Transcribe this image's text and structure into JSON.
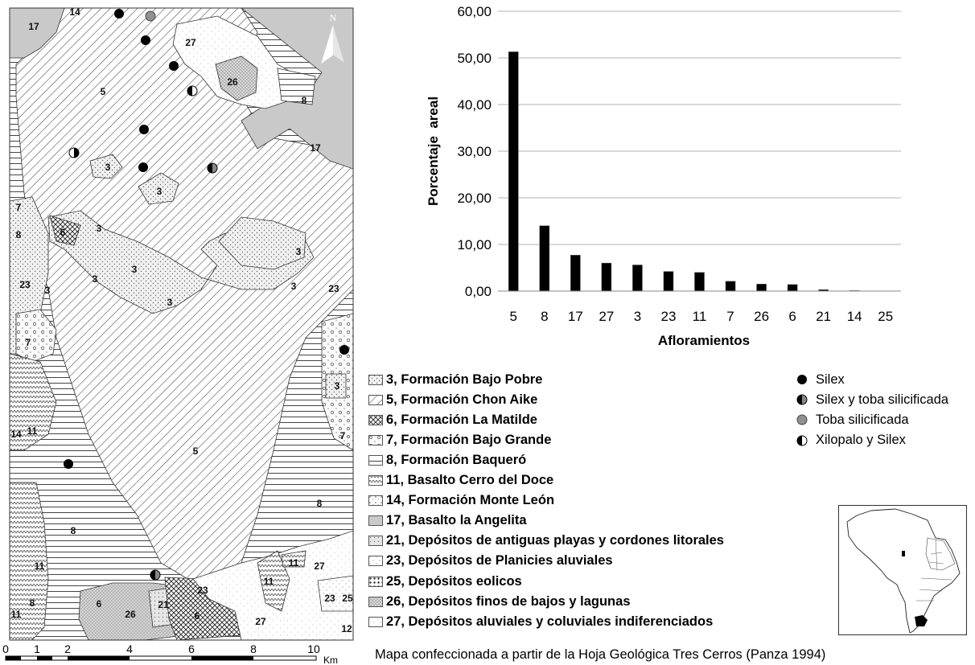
{
  "map": {
    "north_label": "N",
    "unit_labels": [
      {
        "id": "17",
        "text": "17"
      },
      {
        "id": "14",
        "text": "14"
      },
      {
        "id": "5a",
        "text": "5"
      },
      {
        "id": "27a",
        "text": "27"
      },
      {
        "id": "26a",
        "text": "26"
      },
      {
        "id": "8a",
        "text": "8"
      },
      {
        "id": "17b",
        "text": "17"
      },
      {
        "id": "3a",
        "text": "3"
      },
      {
        "id": "3b",
        "text": "3"
      },
      {
        "id": "7a",
        "text": "7"
      },
      {
        "id": "8b",
        "text": "8"
      },
      {
        "id": "6a",
        "text": "6"
      },
      {
        "id": "3c",
        "text": "3"
      },
      {
        "id": "3d",
        "text": "3"
      },
      {
        "id": "3e",
        "text": "3"
      },
      {
        "id": "23a",
        "text": "23"
      },
      {
        "id": "3f",
        "text": "3"
      },
      {
        "id": "3g",
        "text": "3"
      },
      {
        "id": "3h",
        "text": "3"
      },
      {
        "id": "3i",
        "text": "3"
      },
      {
        "id": "23b",
        "text": "23"
      },
      {
        "id": "7b",
        "text": "7"
      },
      {
        "id": "3j",
        "text": "3"
      },
      {
        "id": "14b",
        "text": "14"
      },
      {
        "id": "11a",
        "text": "11"
      },
      {
        "id": "7c",
        "text": "7"
      },
      {
        "id": "5b",
        "text": "5"
      },
      {
        "id": "8c",
        "text": "8"
      },
      {
        "id": "8d",
        "text": "8"
      },
      {
        "id": "11b",
        "text": "11"
      },
      {
        "id": "11c",
        "text": "11"
      },
      {
        "id": "27b",
        "text": "27"
      },
      {
        "id": "11d",
        "text": "11"
      },
      {
        "id": "23c",
        "text": "23"
      },
      {
        "id": "8e",
        "text": "8"
      },
      {
        "id": "6b",
        "text": "6"
      },
      {
        "id": "26b",
        "text": "26"
      },
      {
        "id": "21a",
        "text": "21"
      },
      {
        "id": "6c",
        "text": "6"
      },
      {
        "id": "23d",
        "text": "23"
      },
      {
        "id": "25a",
        "text": "25"
      },
      {
        "id": "27c",
        "text": "27"
      },
      {
        "id": "11e",
        "text": "11"
      },
      {
        "id": "12a",
        "text": "12"
      }
    ]
  },
  "scale": {
    "ticks": [
      "0",
      "1",
      "2",
      "4",
      "6",
      "8",
      "10"
    ],
    "unit": "Km"
  },
  "chart_data": {
    "type": "bar",
    "title": "",
    "xlabel": "Afloramientos",
    "ylabel": "Porcentaje  areal",
    "categories": [
      "5",
      "8",
      "17",
      "27",
      "3",
      "23",
      "11",
      "7",
      "26",
      "6",
      "21",
      "14",
      "25"
    ],
    "values": [
      51.3,
      14.0,
      7.7,
      6.0,
      5.6,
      4.2,
      4.0,
      2.1,
      1.5,
      1.4,
      0.3,
      0.1,
      0.0
    ],
    "ylim": [
      0,
      60
    ],
    "yticks": [
      "0,00",
      "10,00",
      "20,00",
      "30,00",
      "40,00",
      "50,00",
      "60,00"
    ],
    "ytick_values": [
      0,
      10,
      20,
      30,
      40,
      50,
      60
    ],
    "grid": true,
    "bar_color": "#000000"
  },
  "legend": {
    "units": [
      {
        "label": "3, Formación Bajo Pobre",
        "pattern": "p3"
      },
      {
        "label": "5, Formación Chon Aike",
        "pattern": "p5"
      },
      {
        "label": "6, Formación La Matilde",
        "pattern": "p6"
      },
      {
        "label": "7, Formación Bajo Grande",
        "pattern": "p7"
      },
      {
        "label": "8, Formación Baqueró",
        "pattern": "p8"
      },
      {
        "label": "11, Basalto Cerro del Doce",
        "pattern": "p11"
      },
      {
        "label": "14, Formación Monte León",
        "pattern": "p14"
      },
      {
        "label": "17, Basalto la Angelita",
        "pattern": "p17"
      },
      {
        "label": "21, Depósitos de antiguas playas y cordones litorales",
        "pattern": "p21"
      },
      {
        "label": "23, Depósitos de Planicies aluviales",
        "pattern": "p23"
      },
      {
        "label": "25, Depósitos eolicos",
        "pattern": "p25"
      },
      {
        "label": "26, Depósitos finos de bajos y lagunas",
        "pattern": "p26"
      },
      {
        "label": "27, Depósitos aluviales y coluviales indiferenciados",
        "pattern": "p27"
      }
    ],
    "symbols": [
      {
        "label": "Silex",
        "icon": "filled-circle-icon"
      },
      {
        "label": "Silex y toba silicificada",
        "icon": "half-black-circle-icon"
      },
      {
        "label": "Toba silicificada",
        "icon": "grey-circle-icon"
      },
      {
        "label": "Xilopalo y Silex",
        "icon": "half-black-left-circle-icon"
      }
    ]
  },
  "caption": "Mapa confeccionada a partir de la Hoja Geológica Tres Cerros (Panza 1994)"
}
